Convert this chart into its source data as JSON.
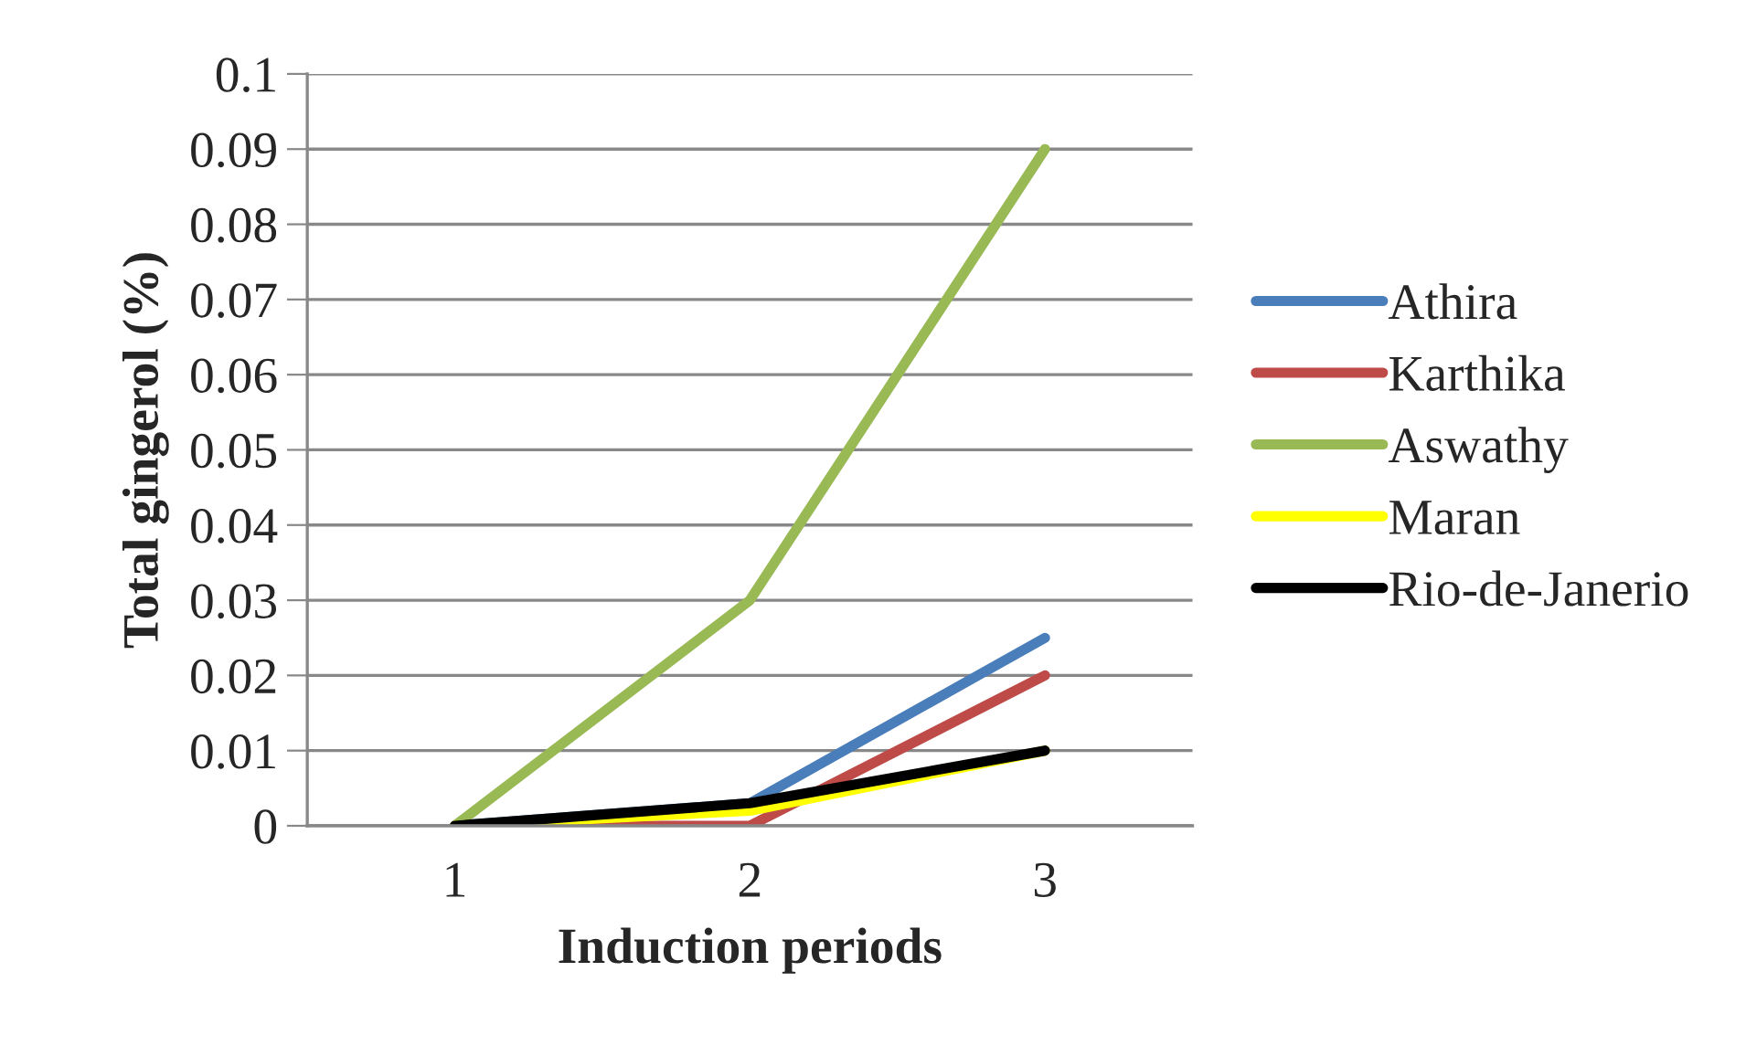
{
  "chart_data": {
    "type": "line",
    "xlabel": "Induction periods",
    "ylabel": "Total gingerol (%)",
    "categories": [
      "1",
      "2",
      "3"
    ],
    "series": [
      {
        "name": "Athira",
        "color": "#4a7ebb",
        "values": [
          0,
          0.003,
          0.025
        ]
      },
      {
        "name": "Karthika",
        "color": "#be4b48",
        "values": [
          0,
          0,
          0.02
        ]
      },
      {
        "name": "Aswathy",
        "color": "#98b954",
        "values": [
          0,
          0.03,
          0.09
        ]
      },
      {
        "name": "Maran",
        "color": "#ffff00",
        "values": [
          0,
          0.002,
          0.01
        ]
      },
      {
        "name": "Rio-de-Janerio",
        "color": "#000000",
        "values": [
          0,
          0.003,
          0.01
        ]
      }
    ],
    "ylim": [
      0,
      0.1
    ],
    "yticks": [
      0,
      0.01,
      0.02,
      0.03,
      0.04,
      0.05,
      0.06,
      0.07,
      0.08,
      0.09,
      0.1
    ],
    "grid": "y",
    "legend": "right",
    "marker": "none",
    "line_style": "solid"
  }
}
